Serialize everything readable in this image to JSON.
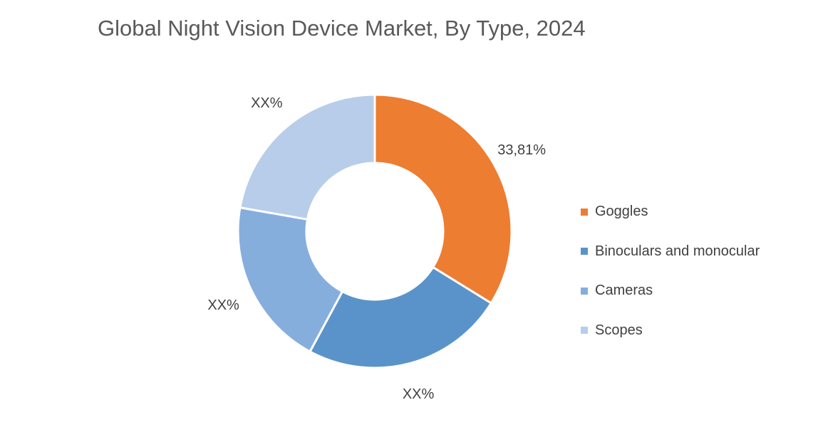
{
  "chart_data": {
    "type": "pie",
    "variant": "donut",
    "title": "Global Night Vision Device Market, By Type, 2024",
    "categories": [
      "Goggles",
      "Binoculars and monocular",
      "Cameras",
      "Scopes"
    ],
    "values": [
      33.81,
      24.05,
      19.92,
      22.22
    ],
    "data_labels": [
      "33,81%",
      "XX%",
      "XX%",
      "XX%"
    ],
    "colors": [
      "#ED7D31",
      "#5A93C9",
      "#86AEDD",
      "#B8CDE9"
    ],
    "legend_position": "right"
  }
}
